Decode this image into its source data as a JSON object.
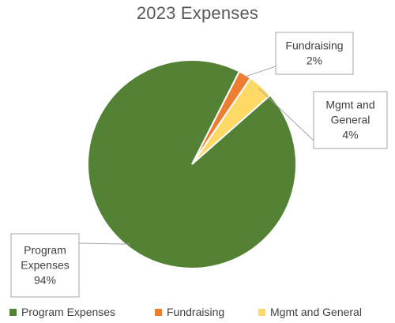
{
  "chart_data": {
    "type": "pie",
    "title": "2023 Expenses",
    "categories": [
      "Program Expenses",
      "Fundraising",
      "Mgmt and General"
    ],
    "values": [
      94,
      2,
      4
    ],
    "unit": "%",
    "colors": [
      "#548235",
      "#ED7D31",
      "#FFD966"
    ],
    "data_labels": [
      [
        "Program",
        "Expenses",
        "94%"
      ],
      [
        "Fundraising",
        "2%"
      ],
      [
        "Mgmt and",
        "General",
        "4%"
      ]
    ],
    "legend": {
      "position": "bottom",
      "entries": [
        "Program Expenses",
        "Fundraising",
        "Mgmt and General"
      ]
    }
  }
}
